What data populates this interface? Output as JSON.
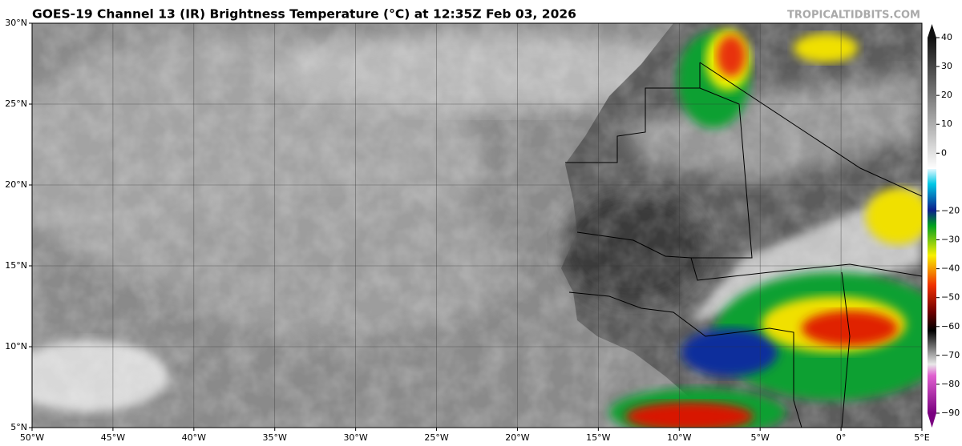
{
  "header": {
    "title": "GOES-19 Channel 13 (IR) Brightness Temperature (°C) at 12:35Z Feb 03, 2026",
    "credit": "TROPICALTIDBITS.COM"
  },
  "map": {
    "lat_ticks": [
      {
        "value": 30,
        "label": "30°N"
      },
      {
        "value": 25,
        "label": "25°N"
      },
      {
        "value": 20,
        "label": "20°N"
      },
      {
        "value": 15,
        "label": "15°N"
      },
      {
        "value": 10,
        "label": "10°N"
      },
      {
        "value": 5,
        "label": "5°N"
      }
    ],
    "lon_ticks": [
      {
        "value": -50,
        "label": "50°W"
      },
      {
        "value": -45,
        "label": "45°W"
      },
      {
        "value": -40,
        "label": "40°W"
      },
      {
        "value": -35,
        "label": "35°W"
      },
      {
        "value": -30,
        "label": "30°W"
      },
      {
        "value": -25,
        "label": "25°W"
      },
      {
        "value": -20,
        "label": "20°W"
      },
      {
        "value": -15,
        "label": "15°W"
      },
      {
        "value": -10,
        "label": "10°W"
      },
      {
        "value": -5,
        "label": "5°W"
      },
      {
        "value": 0,
        "label": "0°"
      },
      {
        "value": 5,
        "label": "5°E"
      }
    ]
  },
  "colorbar": {
    "ticks": [
      40,
      30,
      20,
      10,
      0,
      {
        "value": -20,
        "label": "−20"
      },
      {
        "value": -30,
        "label": "−30"
      },
      {
        "value": -40,
        "label": "−40"
      },
      {
        "value": -50,
        "label": "−50"
      },
      {
        "value": -60,
        "label": "−60"
      },
      {
        "value": -70,
        "label": "−70"
      },
      {
        "value": -80,
        "label": "−80"
      },
      {
        "value": -90,
        "label": "−90"
      }
    ]
  }
}
